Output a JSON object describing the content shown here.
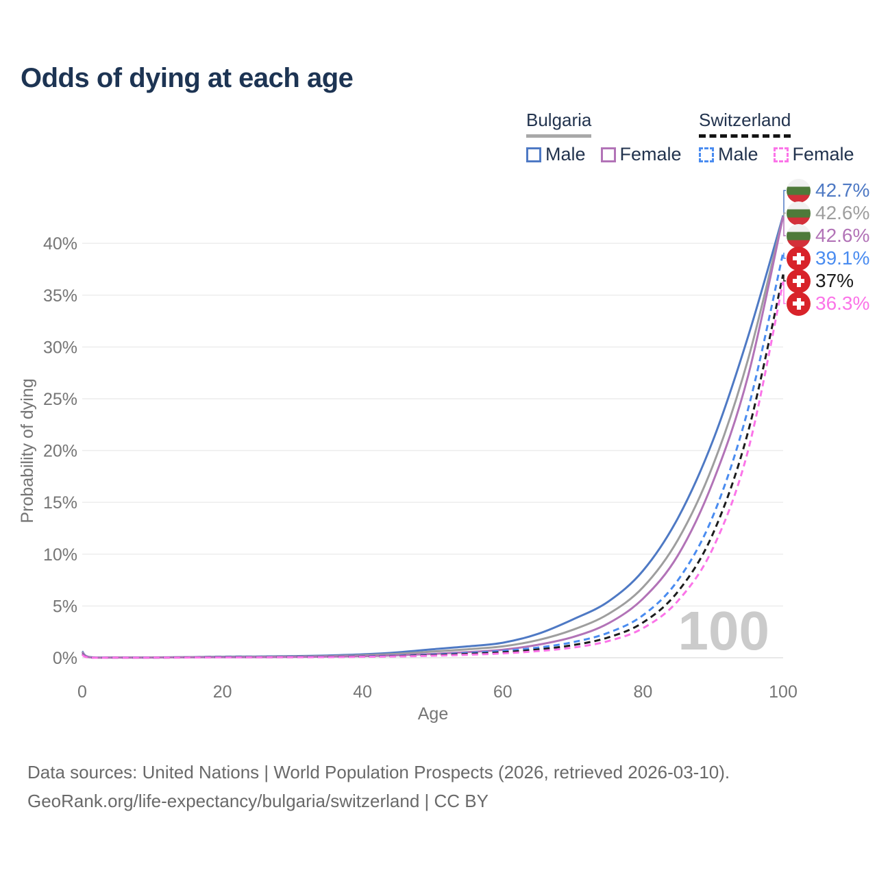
{
  "title": "Odds of dying at each age",
  "watermark": "100",
  "legend": {
    "groups": [
      {
        "label": "Bulgaria",
        "line_color": "#a8a8a8",
        "line_style": "solid",
        "items": [
          {
            "label": "Male",
            "color": "#4e79c4",
            "style": "solid"
          },
          {
            "label": "Female",
            "color": "#b273b7",
            "style": "solid"
          }
        ]
      },
      {
        "label": "Switzerland",
        "line_color": "#141414",
        "line_style": "dashed",
        "items": [
          {
            "label": "Male",
            "color": "#4a8cf0",
            "style": "dashed"
          },
          {
            "label": "Female",
            "color": "#fb74e8",
            "style": "dashed"
          }
        ]
      }
    ]
  },
  "chart_data": {
    "type": "line",
    "title": "Odds of dying at each age",
    "xlabel": "Age",
    "ylabel": "Probability of dying",
    "xlim": [
      0,
      100
    ],
    "ylim_percent": [
      0,
      43
    ],
    "grid": "horizontal",
    "x_ticks": [
      0,
      20,
      40,
      60,
      80,
      100
    ],
    "x_tick_labels": [
      "0",
      "20",
      "40",
      "60",
      "80",
      "100"
    ],
    "y_ticks_percent": [
      0,
      5,
      10,
      15,
      20,
      25,
      30,
      35,
      40
    ],
    "y_tick_labels": [
      "0%",
      "5%",
      "10%",
      "15%",
      "20%",
      "25%",
      "30%",
      "35%",
      "40%"
    ],
    "x": [
      0,
      1,
      5,
      10,
      15,
      20,
      25,
      30,
      35,
      40,
      45,
      50,
      55,
      60,
      65,
      70,
      75,
      80,
      85,
      90,
      95,
      100
    ],
    "series": [
      {
        "name": "Bulgaria Male",
        "country": "Bulgaria",
        "sex": "Male",
        "flag": "bulgaria",
        "color": "#4e79c4",
        "dash": "solid",
        "end_label": "42.7%",
        "end_value_percent": 42.7,
        "values": [
          0.62,
          0.07,
          0.03,
          0.03,
          0.06,
          0.1,
          0.12,
          0.16,
          0.22,
          0.33,
          0.52,
          0.82,
          1.1,
          1.45,
          2.3,
          3.7,
          5.4,
          8.4,
          13.5,
          21.0,
          31.0,
          42.7
        ]
      },
      {
        "name": "Bulgaria Both sexes",
        "country": "Bulgaria",
        "sex": "Both",
        "flag": "bulgaria",
        "color": "#9e9e9e",
        "dash": "solid",
        "end_label": "42.6%",
        "end_value_percent": 42.6,
        "values": [
          0.55,
          0.06,
          0.03,
          0.03,
          0.05,
          0.07,
          0.09,
          0.12,
          0.16,
          0.24,
          0.38,
          0.6,
          0.82,
          1.1,
          1.7,
          2.7,
          4.2,
          6.8,
          11.4,
          18.6,
          28.8,
          42.6
        ]
      },
      {
        "name": "Bulgaria Female",
        "country": "Bulgaria",
        "sex": "Female",
        "flag": "bulgaria",
        "color": "#b273b7",
        "dash": "solid",
        "end_label": "42.6%",
        "end_value_percent": 42.6,
        "values": [
          0.48,
          0.05,
          0.02,
          0.02,
          0.04,
          0.05,
          0.06,
          0.08,
          0.11,
          0.16,
          0.24,
          0.37,
          0.55,
          0.78,
          1.25,
          2.0,
          3.3,
          5.7,
          9.9,
          17.0,
          27.2,
          42.6
        ]
      },
      {
        "name": "Switzerland Male",
        "country": "Switzerland",
        "sex": "Male",
        "flag": "switzerland",
        "color": "#4a8cf0",
        "dash": "dashed",
        "end_label": "39.1%",
        "end_value_percent": 39.1,
        "values": [
          0.36,
          0.03,
          0.02,
          0.02,
          0.04,
          0.06,
          0.07,
          0.08,
          0.1,
          0.14,
          0.2,
          0.31,
          0.46,
          0.66,
          0.98,
          1.5,
          2.4,
          4.1,
          7.5,
          13.7,
          24.0,
          39.1
        ]
      },
      {
        "name": "Switzerland Both sexes",
        "country": "Switzerland",
        "sex": "Both",
        "flag": "switzerland",
        "color": "#1c1c1c",
        "dash": "dashed",
        "end_label": "37%",
        "end_value_percent": 37.0,
        "values": [
          0.33,
          0.03,
          0.01,
          0.01,
          0.03,
          0.05,
          0.05,
          0.06,
          0.08,
          0.11,
          0.16,
          0.25,
          0.37,
          0.53,
          0.8,
          1.22,
          1.95,
          3.4,
          6.4,
          12.0,
          21.8,
          37.0
        ]
      },
      {
        "name": "Switzerland Female",
        "country": "Switzerland",
        "sex": "Female",
        "flag": "switzerland",
        "color": "#fb74e8",
        "dash": "dashed",
        "end_label": "36.3%",
        "end_value_percent": 36.3,
        "values": [
          0.3,
          0.02,
          0.01,
          0.01,
          0.02,
          0.03,
          0.04,
          0.05,
          0.06,
          0.09,
          0.13,
          0.2,
          0.29,
          0.42,
          0.64,
          0.98,
          1.6,
          2.85,
          5.5,
          10.6,
          20.0,
          36.3
        ]
      }
    ]
  },
  "colors": {
    "title_text": "#1d3453",
    "axis_text": "#757575",
    "gridline": "#ebebeb",
    "watermark": "#cbcbcb",
    "footer_text": "#696969"
  },
  "footer": {
    "line1": "Data sources: United Nations | World Population Prospects (2026, retrieved 2026-03-10).",
    "line2": "GeoRank.org/life-expectancy/bulgaria/switzerland | CC BY"
  }
}
